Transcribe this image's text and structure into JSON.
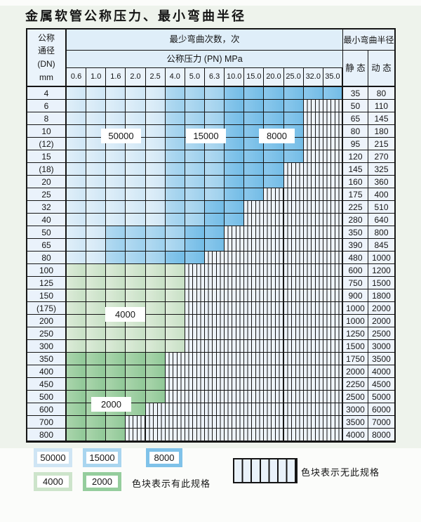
{
  "title": "金属软管公称压力、最小弯曲半径",
  "header": {
    "dn_label": "公称\n通径\n(DN)\nmm",
    "cycles_label": "最少弯曲次数，次",
    "pressure_label": "公称压力 (PN) MPa",
    "radius_label": "最小弯曲半径",
    "static_label": "静 态",
    "dynamic_label": "动 态",
    "pressures": [
      "0.6",
      "1.0",
      "1.6",
      "2.0",
      "2.5",
      "4.0",
      "5.0",
      "6.3",
      "10.0",
      "15.0",
      "20.0",
      "25.0",
      "32.0",
      "35.0"
    ]
  },
  "colors": {
    "cycles_50000": "#cfe5f4",
    "cycles_15000": "#a9d5ef",
    "cycles_8000": "#7fc2e9",
    "cycles_4000": "#cde4cb",
    "cycles_2000": "#95cd9d"
  },
  "overlays": [
    {
      "label": "50000"
    },
    {
      "label": "15000"
    },
    {
      "label": "8000"
    },
    {
      "label": "4000"
    },
    {
      "label": "2000"
    }
  ],
  "legend": {
    "swatches": [
      {
        "label": "50000",
        "color_key": "cycles_50000"
      },
      {
        "label": "15000",
        "color_key": "cycles_15000"
      },
      {
        "label": "8000",
        "color_key": "cycles_8000"
      },
      {
        "label": "4000",
        "color_key": "cycles_4000"
      },
      {
        "label": "2000",
        "color_key": "cycles_2000"
      }
    ],
    "available_label": "色块表示有此规格",
    "unavailable_label": "色块表示无此规格"
  },
  "cell_legend": {
    "b1": "50000次",
    "b2": "15000次",
    "b3": "8000次",
    "g1": "4000次",
    "g2": "2000次",
    "x": "无此规格"
  },
  "rows": [
    {
      "dn": "4",
      "static": "35",
      "dynamic": "80",
      "cells": [
        "b1",
        "b1",
        "b1",
        "b1",
        "b1",
        "b2",
        "b2",
        "b2",
        "b3",
        "b3",
        "b3",
        "b3",
        "b3",
        "b3"
      ]
    },
    {
      "dn": "6",
      "static": "50",
      "dynamic": "110",
      "cells": [
        "b1",
        "b1",
        "b1",
        "b1",
        "b1",
        "b2",
        "b2",
        "b2",
        "b3",
        "b3",
        "b3",
        "b3",
        "x",
        "x"
      ]
    },
    {
      "dn": "8",
      "static": "65",
      "dynamic": "145",
      "cells": [
        "b1",
        "b1",
        "b1",
        "b1",
        "b1",
        "b2",
        "b2",
        "b2",
        "b3",
        "b3",
        "b3",
        "b3",
        "x",
        "x"
      ]
    },
    {
      "dn": "10",
      "static": "80",
      "dynamic": "180",
      "cells": [
        "b1",
        "b1",
        "b1",
        "b1",
        "b1",
        "b2",
        "b2",
        "b2",
        "b3",
        "b3",
        "b3",
        "b3",
        "x",
        "x"
      ]
    },
    {
      "dn": "(12)",
      "static": "95",
      "dynamic": "215",
      "cells": [
        "b1",
        "b1",
        "b1",
        "b1",
        "b1",
        "b2",
        "b2",
        "b2",
        "b3",
        "b3",
        "b3",
        "b3",
        "x",
        "x"
      ]
    },
    {
      "dn": "15",
      "static": "120",
      "dynamic": "270",
      "cells": [
        "b1",
        "b1",
        "b1",
        "b1",
        "b1",
        "b2",
        "b2",
        "b2",
        "b3",
        "b3",
        "b3",
        "b3",
        "x",
        "x"
      ]
    },
    {
      "dn": "(18)",
      "static": "145",
      "dynamic": "325",
      "cells": [
        "b1",
        "b1",
        "b1",
        "b1",
        "b1",
        "b2",
        "b2",
        "b2",
        "b3",
        "b3",
        "b3",
        "x",
        "x",
        "x"
      ]
    },
    {
      "dn": "20",
      "static": "160",
      "dynamic": "360",
      "cells": [
        "b1",
        "b1",
        "b1",
        "b1",
        "b1",
        "b2",
        "b2",
        "b2",
        "b3",
        "b3",
        "b3",
        "x",
        "x",
        "x"
      ]
    },
    {
      "dn": "25",
      "static": "175",
      "dynamic": "400",
      "cells": [
        "b1",
        "b1",
        "b1",
        "b1",
        "b1",
        "b2",
        "b2",
        "b2",
        "b3",
        "b3",
        "x",
        "x",
        "x",
        "x"
      ]
    },
    {
      "dn": "32",
      "static": "225",
      "dynamic": "510",
      "cells": [
        "b1",
        "b1",
        "b1",
        "b1",
        "b1",
        "b2",
        "b2",
        "b3",
        "b3",
        "x",
        "x",
        "x",
        "x",
        "x"
      ]
    },
    {
      "dn": "40",
      "static": "280",
      "dynamic": "640",
      "cells": [
        "b1",
        "b1",
        "b1",
        "b1",
        "b1",
        "b2",
        "b2",
        "b3",
        "b3",
        "x",
        "x",
        "x",
        "x",
        "x"
      ]
    },
    {
      "dn": "50",
      "static": "350",
      "dynamic": "800",
      "cells": [
        "b1",
        "b1",
        "b2",
        "b2",
        "b2",
        "b2",
        "b3",
        "b3",
        "x",
        "x",
        "x",
        "x",
        "x",
        "x"
      ]
    },
    {
      "dn": "65",
      "static": "390",
      "dynamic": "845",
      "cells": [
        "b1",
        "b1",
        "b2",
        "b2",
        "b2",
        "b2",
        "b3",
        "b3",
        "x",
        "x",
        "x",
        "x",
        "x",
        "x"
      ]
    },
    {
      "dn": "80",
      "static": "480",
      "dynamic": "1000",
      "cells": [
        "b1",
        "b1",
        "b2",
        "b2",
        "b2",
        "b3",
        "b3",
        "x",
        "x",
        "x",
        "x",
        "x",
        "x",
        "x"
      ]
    },
    {
      "dn": "100",
      "static": "600",
      "dynamic": "1200",
      "cells": [
        "g1",
        "g1",
        "g1",
        "g1",
        "g1",
        "g1",
        "x",
        "x",
        "x",
        "x",
        "x",
        "x",
        "x",
        "x"
      ]
    },
    {
      "dn": "125",
      "static": "750",
      "dynamic": "1500",
      "cells": [
        "g1",
        "g1",
        "g1",
        "g1",
        "g1",
        "g1",
        "x",
        "x",
        "x",
        "x",
        "x",
        "x",
        "x",
        "x"
      ]
    },
    {
      "dn": "150",
      "static": "900",
      "dynamic": "1800",
      "cells": [
        "g1",
        "g1",
        "g1",
        "g1",
        "g1",
        "g1",
        "x",
        "x",
        "x",
        "x",
        "x",
        "x",
        "x",
        "x"
      ]
    },
    {
      "dn": "(175)",
      "static": "1000",
      "dynamic": "2000",
      "cells": [
        "g1",
        "g1",
        "g1",
        "g1",
        "g1",
        "g1",
        "x",
        "x",
        "x",
        "x",
        "x",
        "x",
        "x",
        "x"
      ]
    },
    {
      "dn": "200",
      "static": "1000",
      "dynamic": "2000",
      "cells": [
        "g1",
        "g1",
        "g1",
        "g1",
        "g1",
        "g1",
        "x",
        "x",
        "x",
        "x",
        "x",
        "x",
        "x",
        "x"
      ]
    },
    {
      "dn": "250",
      "static": "1250",
      "dynamic": "2500",
      "cells": [
        "g1",
        "g1",
        "g1",
        "g1",
        "g1",
        "g1",
        "x",
        "x",
        "x",
        "x",
        "x",
        "x",
        "x",
        "x"
      ]
    },
    {
      "dn": "300",
      "static": "1500",
      "dynamic": "3000",
      "cells": [
        "g1",
        "g1",
        "g1",
        "g1",
        "g1",
        "g1",
        "x",
        "x",
        "x",
        "x",
        "x",
        "x",
        "x",
        "x"
      ]
    },
    {
      "dn": "350",
      "static": "1750",
      "dynamic": "3500",
      "cells": [
        "g2",
        "g2",
        "g2",
        "g2",
        "g2",
        "x",
        "x",
        "x",
        "x",
        "x",
        "x",
        "x",
        "x",
        "x"
      ]
    },
    {
      "dn": "400",
      "static": "2000",
      "dynamic": "4000",
      "cells": [
        "g2",
        "g2",
        "g2",
        "g2",
        "g2",
        "x",
        "x",
        "x",
        "x",
        "x",
        "x",
        "x",
        "x",
        "x"
      ]
    },
    {
      "dn": "450",
      "static": "2250",
      "dynamic": "4500",
      "cells": [
        "g2",
        "g2",
        "g2",
        "g2",
        "g2",
        "x",
        "x",
        "x",
        "x",
        "x",
        "x",
        "x",
        "x",
        "x"
      ]
    },
    {
      "dn": "500",
      "static": "2500",
      "dynamic": "5000",
      "cells": [
        "g2",
        "g2",
        "g2",
        "g2",
        "g2",
        "x",
        "x",
        "x",
        "x",
        "x",
        "x",
        "x",
        "x",
        "x"
      ]
    },
    {
      "dn": "600",
      "static": "3000",
      "dynamic": "6000",
      "cells": [
        "g2",
        "g2",
        "g2",
        "g2",
        "x",
        "x",
        "x",
        "x",
        "x",
        "x",
        "x",
        "x",
        "x",
        "x"
      ]
    },
    {
      "dn": "700",
      "static": "3500",
      "dynamic": "7000",
      "cells": [
        "g2",
        "g2",
        "g2",
        "x",
        "x",
        "x",
        "x",
        "x",
        "x",
        "x",
        "x",
        "x",
        "x",
        "x"
      ]
    },
    {
      "dn": "800",
      "static": "4000",
      "dynamic": "8000",
      "cells": [
        "g2",
        "g2",
        "g2",
        "x",
        "x",
        "x",
        "x",
        "x",
        "x",
        "x",
        "x",
        "x",
        "x",
        "x"
      ]
    }
  ]
}
